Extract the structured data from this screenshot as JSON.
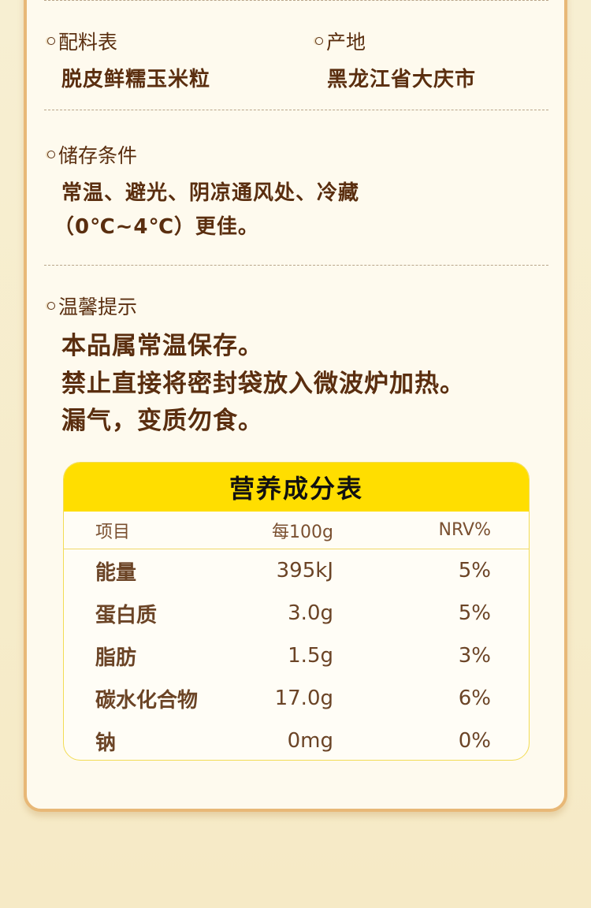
{
  "ingredients": {
    "label": "配料表",
    "value": "脱皮鲜糯玉米粒"
  },
  "origin": {
    "label": "产地",
    "value": "黑龙江省大庆市"
  },
  "storage": {
    "label": "储存条件",
    "lines": [
      "常温、避光、阴凉通风处、冷藏",
      "（0℃~4℃）更佳。"
    ]
  },
  "tips": {
    "label": "温馨提示",
    "lines": [
      "本品属常温保存。",
      "禁止直接将密封袋放入微波炉加热。",
      "漏气，变质勿食。"
    ]
  },
  "nutrition": {
    "title": "营养成分表",
    "headers": [
      "项目",
      "每100g",
      "NRV%"
    ],
    "rows": [
      [
        "能量",
        "395kJ",
        "5%"
      ],
      [
        "蛋白质",
        "3.0g",
        "5%"
      ],
      [
        "脂肪",
        "1.5g",
        "3%"
      ],
      [
        "碳水化合物",
        "17.0g",
        "6%"
      ],
      [
        "钠",
        "0mg",
        "0%"
      ]
    ]
  },
  "colors": {
    "text": "#5a2e0f",
    "accent": "#ffde00",
    "border": "#e8b877"
  }
}
